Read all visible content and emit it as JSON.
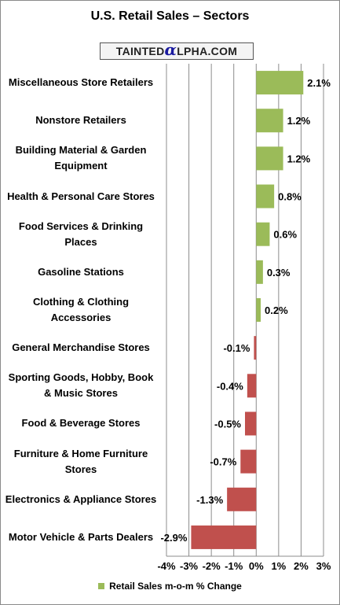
{
  "chart_data": {
    "type": "bar",
    "orientation": "horizontal",
    "title": "U.S. Retail Sales – Sectors",
    "categories": [
      "Miscellaneous Store Retailers",
      "Nonstore Retailers",
      "Building Material & Garden Equipment",
      "Health & Personal Care Stores",
      "Food Services & Drinking Places",
      "Gasoline Stations",
      "Clothing & Clothing Accessories",
      "General Merchandise Stores",
      "Sporting Goods, Hobby, Book & Music Stores",
      "Food & Beverage Stores",
      "Furniture & Home Furniture Stores",
      "Electronics & Appliance Stores",
      "Motor Vehicle & Parts Dealers"
    ],
    "series": [
      {
        "name": "Retail Sales m-o-m % Change",
        "values": [
          2.1,
          1.2,
          1.2,
          0.8,
          0.6,
          0.3,
          0.2,
          -0.1,
          -0.4,
          -0.5,
          -0.7,
          -1.3,
          -2.9
        ],
        "labels": [
          "2.1%",
          "1.2%",
          "1.2%",
          "0.8%",
          "0.6%",
          "0.3%",
          "0.2%",
          "-0.1%",
          "-0.4%",
          "-0.5%",
          "-0.7%",
          "-1.3%",
          "-2.9%"
        ]
      }
    ],
    "xlim": [
      -4,
      3
    ],
    "xticks": [
      -4,
      -3,
      -2,
      -1,
      0,
      1,
      2,
      3
    ],
    "xtick_labels": [
      "-4%",
      "-3%",
      "-2%",
      "-1%",
      "0%",
      "1%",
      "2%",
      "3%"
    ],
    "grid": "vertical",
    "legend": "bottom",
    "positive_color": "#9bbb59",
    "negative_color": "#c0504d"
  },
  "logo": {
    "left": "TAINTED",
    "alpha": "α",
    "right": "LPHA.COM"
  }
}
